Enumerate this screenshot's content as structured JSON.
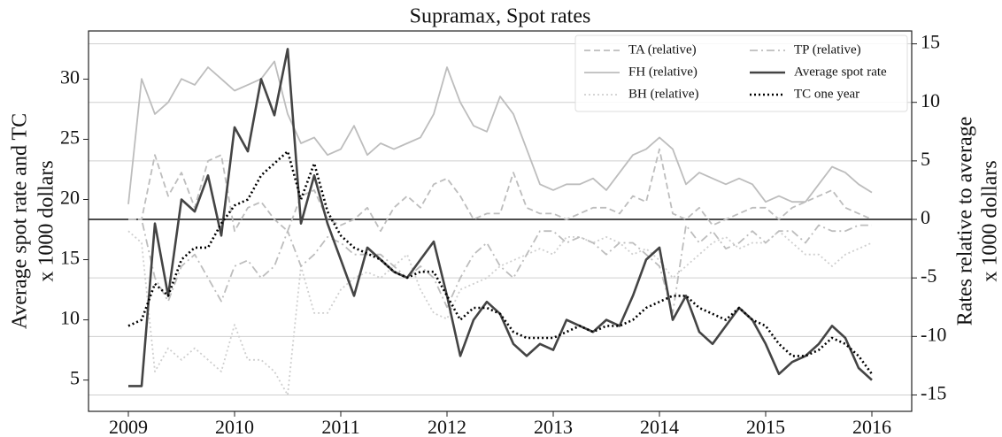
{
  "chart_data": {
    "type": "line",
    "title": "Supramax, Spot rates",
    "ylabel": [
      "Average spot rate and TC",
      "x 1000 dollars"
    ],
    "y2label": [
      "Rates relative to average",
      "x 1000 dollars"
    ],
    "x": [
      2009,
      2009.125,
      2009.25,
      2009.375,
      2009.5,
      2009.625,
      2009.75,
      2009.875,
      2010,
      2010.125,
      2010.25,
      2010.375,
      2010.5,
      2010.625,
      2010.75,
      2010.875,
      2011,
      2011.125,
      2011.25,
      2011.375,
      2011.5,
      2011.625,
      2011.75,
      2011.875,
      2012,
      2012.125,
      2012.25,
      2012.375,
      2012.5,
      2012.625,
      2012.75,
      2012.875,
      2013,
      2013.125,
      2013.25,
      2013.375,
      2013.5,
      2013.625,
      2013.75,
      2013.875,
      2014,
      2014.125,
      2014.25,
      2014.375,
      2014.5,
      2014.625,
      2014.75,
      2014.875,
      2015,
      2015.125,
      2015.25,
      2015.375,
      2015.5,
      2015.625,
      2015.75,
      2015.875,
      2016
    ],
    "xlim": [
      2008.625,
      2016.375
    ],
    "xticks": [
      2009,
      2010,
      2011,
      2012,
      2013,
      2014,
      2015,
      2016
    ],
    "ylim": [
      2.4,
      34.0
    ],
    "yticks": [
      5,
      10,
      15,
      20,
      25,
      30
    ],
    "y2lim": [
      -16.4,
      16.1
    ],
    "y2ticks": [
      -15,
      -10,
      -5,
      0,
      5,
      10,
      15
    ],
    "grid": "y2",
    "legend": "upper right",
    "series": [
      {
        "name": "TA (relative)",
        "color": "#bdbdbd",
        "linestyle": "dashed",
        "axis": "y2",
        "values": [
          0,
          0,
          5.5,
          2,
          4,
          1,
          5,
          5.5,
          -1,
          1,
          1.5,
          0,
          -1,
          2,
          2.5,
          0,
          -0.5,
          0,
          1,
          -1,
          1,
          2,
          1,
          3,
          3.5,
          2,
          0,
          0.5,
          0.5,
          4,
          1,
          0.5,
          0.5,
          0,
          0.5,
          1,
          1,
          0.5,
          2,
          1.5,
          6,
          0.5,
          0,
          1,
          -0.5,
          0,
          0.5,
          1,
          1,
          0,
          1,
          1.5,
          2,
          2.5,
          1,
          0.5,
          0
        ]
      },
      {
        "name": "FH (relative)",
        "color": "#bdbdbd",
        "linestyle": "solid",
        "axis": "y2",
        "values": [
          1.3,
          12,
          9,
          10,
          12,
          11.5,
          13,
          12,
          11,
          11.5,
          12,
          13.5,
          9,
          6.5,
          7,
          5.5,
          6,
          8,
          5.5,
          6.5,
          6,
          6.5,
          7,
          9,
          13,
          10,
          8,
          7.5,
          10.5,
          9,
          6,
          3,
          2.5,
          3,
          3,
          3.5,
          2.5,
          4,
          5.5,
          6,
          7,
          6,
          3,
          4,
          3.5,
          3,
          3.5,
          3,
          1.5,
          2,
          1.5,
          1.5,
          3,
          4.5,
          4,
          3,
          2.3
        ]
      },
      {
        "name": "BH (relative)",
        "color": "#cfcfcf",
        "linestyle": "dotted",
        "axis": "y2",
        "values": [
          -1,
          -2,
          -13,
          -11,
          -12,
          -11,
          -12,
          -13,
          -9,
          -12,
          -12,
          -13,
          -15,
          -4,
          -8,
          -8,
          -6,
          -5,
          -4.5,
          -5,
          -4,
          -3,
          -6,
          -8,
          -8.5,
          -6,
          -5.5,
          -5,
          -4,
          -3.5,
          -3,
          -2.5,
          -3,
          -1.5,
          -1.5,
          -2,
          -1.5,
          -2,
          -3,
          -2.5,
          -3.5,
          -5,
          -4,
          -3,
          -2,
          -1.5,
          -2.5,
          -2,
          -2,
          -1,
          -2,
          -3,
          -3,
          -4,
          -3,
          -2.5,
          -2
        ]
      },
      {
        "name": "TP (relative)",
        "color": "#bdbdbd",
        "linestyle": "dashdot",
        "axis": "y2",
        "values": [
          0,
          0,
          -5,
          -7,
          -4,
          -3,
          -5,
          -7,
          -4,
          -3.5,
          -5,
          -4,
          -1,
          -4,
          -3,
          -1.5,
          -2,
          -3,
          -3,
          -3,
          -4,
          -5,
          -4,
          -5,
          -7.5,
          -5,
          -3,
          -2,
          -4,
          -5,
          -3,
          -1,
          -1,
          -2,
          -1.5,
          -2,
          -3,
          -2,
          -2,
          -3,
          -4,
          -8,
          -0.5,
          -2,
          -1,
          -2.5,
          -2,
          -1,
          -2,
          -1,
          -1,
          -2,
          -0.5,
          -1,
          -1,
          -0.5,
          -0.5
        ]
      },
      {
        "name": "Average spot rate",
        "color": "#444444",
        "linestyle": "solid",
        "axis": "y",
        "values": [
          4.5,
          4.5,
          18,
          12,
          20,
          19,
          22,
          17,
          26,
          24,
          30,
          27,
          32.5,
          18,
          22,
          18,
          15,
          12,
          16,
          15,
          14,
          13.5,
          15,
          16.5,
          12,
          7,
          10,
          11.5,
          10.5,
          8,
          7,
          8,
          7.5,
          10,
          9.5,
          9,
          10,
          9.5,
          12,
          15,
          16,
          10,
          12,
          9,
          8,
          9.5,
          11,
          10,
          8,
          5.5,
          6.5,
          7,
          8,
          9.5,
          8.5,
          6,
          5
        ]
      },
      {
        "name": "TC one year",
        "color": "#000000",
        "linestyle": "dotted",
        "axis": "y",
        "values": [
          9.5,
          10,
          13,
          12,
          15,
          16,
          16,
          18,
          19.5,
          20,
          22,
          23,
          24,
          20,
          23,
          19,
          17,
          16,
          15.5,
          15,
          14,
          13.5,
          14,
          14,
          12,
          10,
          11,
          11,
          10.5,
          9,
          8.5,
          8.5,
          8.5,
          9,
          9.5,
          9,
          9.5,
          9.5,
          10,
          11,
          11.5,
          12,
          12,
          11,
          10.5,
          10,
          11,
          10,
          9.5,
          8,
          7,
          7,
          7.5,
          8.5,
          8,
          7,
          5.5
        ]
      }
    ]
  }
}
